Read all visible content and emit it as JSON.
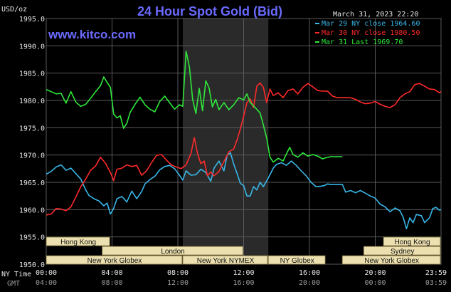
{
  "chart_data": {
    "type": "line",
    "title": "24 Hour Spot Gold (Bid)",
    "site": "www.kitco.com",
    "date_label": "March 31, 2023 22:20",
    "ylabel": "USD/oz",
    "ylim": [
      1950,
      1995
    ],
    "yticks": [
      "1995.0",
      "1990.0",
      "1985.0",
      "1980.0",
      "1975.0",
      "1970.0",
      "1965.0",
      "1960.0",
      "1955.0",
      "1950.0"
    ],
    "ytick_values": [
      1995,
      1990,
      1985,
      1980,
      1975,
      1970,
      1965,
      1960,
      1955,
      1950
    ],
    "x_range_hours": [
      0,
      24
    ],
    "ny_time_label": "NY Time",
    "gmt_label": "GMT",
    "xticks_ny": [
      "00:00",
      "04:00",
      "08:00",
      "12:00",
      "16:00",
      "20:00",
      "23:59"
    ],
    "xticks_gmt": [
      "04:00",
      "08:00",
      "12:00",
      "16:00",
      "20:00",
      "00:00",
      "03:59"
    ],
    "xtick_hours": [
      0,
      4,
      8,
      12,
      16,
      20,
      24
    ],
    "shaded_region_hours": [
      8.3,
      13.5
    ],
    "grid": true,
    "legend_position": "top-right",
    "series": [
      {
        "name": "Mar 29 NY close 1964.60",
        "color": "#39b6e8",
        "points": [
          [
            0,
            1966.5
          ],
          [
            0.3,
            1967
          ],
          [
            0.6,
            1967.8
          ],
          [
            0.9,
            1968.2
          ],
          [
            1.2,
            1967.2
          ],
          [
            1.5,
            1967.6
          ],
          [
            1.8,
            1966.6
          ],
          [
            2.1,
            1965.6
          ],
          [
            2.4,
            1963.6
          ],
          [
            2.6,
            1962.6
          ],
          [
            2.9,
            1962
          ],
          [
            3.2,
            1961.6
          ],
          [
            3.5,
            1960.7
          ],
          [
            3.7,
            1961.2
          ],
          [
            3.9,
            1959.2
          ],
          [
            4.1,
            1960.2
          ],
          [
            4.3,
            1962
          ],
          [
            4.6,
            1962.4
          ],
          [
            4.9,
            1961.4
          ],
          [
            5.2,
            1963.4
          ],
          [
            5.5,
            1962
          ],
          [
            5.8,
            1963.3
          ],
          [
            6.0,
            1964.7
          ],
          [
            6.3,
            1965.5
          ],
          [
            6.6,
            1966.1
          ],
          [
            6.9,
            1967.3
          ],
          [
            7.2,
            1967.9
          ],
          [
            7.5,
            1968.1
          ],
          [
            7.8,
            1967.5
          ],
          [
            8.1,
            1966.3
          ],
          [
            8.3,
            1965.4
          ],
          [
            8.5,
            1967.1
          ],
          [
            8.8,
            1966.3
          ],
          [
            9.1,
            1966.4
          ],
          [
            9.4,
            1967.4
          ],
          [
            9.7,
            1966.8
          ],
          [
            10.0,
            1965.2
          ],
          [
            10.2,
            1967.6
          ],
          [
            10.5,
            1968.9
          ],
          [
            10.8,
            1967.1
          ],
          [
            11.0,
            1970
          ],
          [
            11.2,
            1970.4
          ],
          [
            11.4,
            1968.3
          ],
          [
            11.6,
            1966.6
          ],
          [
            11.8,
            1964.8
          ],
          [
            12.0,
            1964.4
          ],
          [
            12.2,
            1962.5
          ],
          [
            12.4,
            1962.5
          ],
          [
            12.6,
            1964.2
          ],
          [
            12.8,
            1963.6
          ],
          [
            13.0,
            1965
          ],
          [
            13.2,
            1964.2
          ],
          [
            13.5,
            1965.8
          ],
          [
            13.8,
            1967.6
          ],
          [
            14.0,
            1968.3
          ],
          [
            14.3,
            1968.6
          ],
          [
            14.6,
            1968.1
          ],
          [
            14.9,
            1968.9
          ],
          [
            15.2,
            1968.1
          ],
          [
            15.5,
            1967.1
          ],
          [
            15.8,
            1966.2
          ],
          [
            16.1,
            1965
          ],
          [
            16.4,
            1964.2
          ],
          [
            16.7,
            1964.3
          ],
          [
            16.9,
            1964.4
          ],
          [
            17.1,
            1964.7
          ],
          [
            17.3,
            1964.6
          ],
          [
            18,
            1964.6
          ],
          [
            18.2,
            1963.2
          ],
          [
            18.5,
            1963.5
          ],
          [
            18.8,
            1963.1
          ],
          [
            19.1,
            1963.5
          ],
          [
            19.4,
            1963
          ],
          [
            19.7,
            1962.5
          ],
          [
            20.0,
            1962.1
          ],
          [
            20.3,
            1961
          ],
          [
            20.6,
            1960.5
          ],
          [
            20.9,
            1959.6
          ],
          [
            21.2,
            1960.3
          ],
          [
            21.5,
            1959.8
          ],
          [
            21.7,
            1958.6
          ],
          [
            21.9,
            1956.5
          ],
          [
            22.1,
            1958.5
          ],
          [
            22.3,
            1957.6
          ],
          [
            22.5,
            1959.1
          ],
          [
            22.8,
            1958.9
          ],
          [
            23.0,
            1957.6
          ],
          [
            23.3,
            1958.5
          ],
          [
            23.5,
            1960.2
          ],
          [
            23.7,
            1960.4
          ],
          [
            23.9,
            1959.9
          ],
          [
            24,
            1960
          ]
        ]
      },
      {
        "name": "Mar 30 NY close 1980.50",
        "color": "#ff2a2a",
        "points": [
          [
            0,
            1959
          ],
          [
            0.3,
            1959.2
          ],
          [
            0.6,
            1960.2
          ],
          [
            0.9,
            1960.1
          ],
          [
            1.2,
            1959.8
          ],
          [
            1.5,
            1960.5
          ],
          [
            1.8,
            1962.3
          ],
          [
            2.1,
            1964.2
          ],
          [
            2.4,
            1965.6
          ],
          [
            2.7,
            1967.2
          ],
          [
            3.0,
            1968
          ],
          [
            3.3,
            1969.6
          ],
          [
            3.6,
            1968.5
          ],
          [
            3.9,
            1966.8
          ],
          [
            4.1,
            1965.3
          ],
          [
            4.3,
            1967.4
          ],
          [
            4.6,
            1967.6
          ],
          [
            4.9,
            1968.2
          ],
          [
            5.2,
            1967.9
          ],
          [
            5.5,
            1968.1
          ],
          [
            5.8,
            1966.3
          ],
          [
            6.1,
            1967.1
          ],
          [
            6.4,
            1968.6
          ],
          [
            6.7,
            1969.9
          ],
          [
            7.0,
            1970.1
          ],
          [
            7.3,
            1969.1
          ],
          [
            7.6,
            1968.2
          ],
          [
            7.9,
            1967.8
          ],
          [
            8.2,
            1967.5
          ],
          [
            8.5,
            1968.2
          ],
          [
            8.8,
            1970.3
          ],
          [
            9.0,
            1973.2
          ],
          [
            9.2,
            1970.2
          ],
          [
            9.4,
            1968.4
          ],
          [
            9.6,
            1968.9
          ],
          [
            9.8,
            1966.2
          ],
          [
            10.0,
            1966.9
          ],
          [
            10.2,
            1966.2
          ],
          [
            10.5,
            1967
          ],
          [
            10.8,
            1968.8
          ],
          [
            11.1,
            1970.6
          ],
          [
            11.4,
            1971.1
          ],
          [
            11.6,
            1972.8
          ],
          [
            11.8,
            1974.8
          ],
          [
            12.0,
            1977.1
          ],
          [
            12.2,
            1979.6
          ],
          [
            12.4,
            1980.3
          ],
          [
            12.6,
            1978.7
          ],
          [
            12.8,
            1982.6
          ],
          [
            13.0,
            1983.2
          ],
          [
            13.2,
            1982.4
          ],
          [
            13.4,
            1979.6
          ],
          [
            13.6,
            1982.1
          ],
          [
            13.8,
            1980.9
          ],
          [
            14.1,
            1981.4
          ],
          [
            14.4,
            1980.5
          ],
          [
            14.7,
            1981.8
          ],
          [
            15.0,
            1982.1
          ],
          [
            15.3,
            1981.2
          ],
          [
            15.6,
            1982.4
          ],
          [
            15.9,
            1983.1
          ],
          [
            16.2,
            1982.5
          ],
          [
            16.5,
            1981.8
          ],
          [
            16.8,
            1981.7
          ],
          [
            17.1,
            1981.7
          ],
          [
            17.4,
            1980.8
          ],
          [
            17.7,
            1980.5
          ],
          [
            18.5,
            1980.5
          ],
          [
            18.8,
            1980.2
          ],
          [
            19.1,
            1979.7
          ],
          [
            19.4,
            1979.4
          ],
          [
            19.7,
            1979.5
          ],
          [
            20.0,
            1979.8
          ],
          [
            20.3,
            1979.3
          ],
          [
            20.6,
            1978.9
          ],
          [
            20.9,
            1978.7
          ],
          [
            21.2,
            1979.2
          ],
          [
            21.5,
            1980.5
          ],
          [
            21.8,
            1981.2
          ],
          [
            22.1,
            1981.6
          ],
          [
            22.4,
            1982.9
          ],
          [
            22.7,
            1983.1
          ],
          [
            23.0,
            1982.6
          ],
          [
            23.3,
            1982.1
          ],
          [
            23.6,
            1982
          ],
          [
            23.9,
            1981.4
          ],
          [
            24,
            1981.6
          ]
        ]
      },
      {
        "name": "Mar 31 Last 1969.70",
        "color": "#2ee83a",
        "points": [
          [
            0,
            1982
          ],
          [
            0.3,
            1981.6
          ],
          [
            0.6,
            1981.2
          ],
          [
            0.9,
            1981.3
          ],
          [
            1.2,
            1979.5
          ],
          [
            1.5,
            1981.6
          ],
          [
            1.8,
            1979.7
          ],
          [
            2.1,
            1978.9
          ],
          [
            2.4,
            1979.3
          ],
          [
            2.7,
            1980.4
          ],
          [
            3.0,
            1981.6
          ],
          [
            3.3,
            1982.7
          ],
          [
            3.5,
            1984.3
          ],
          [
            3.7,
            1983.3
          ],
          [
            3.9,
            1982.4
          ],
          [
            4.1,
            1977.5
          ],
          [
            4.3,
            1976.8
          ],
          [
            4.5,
            1977.2
          ],
          [
            4.7,
            1974.9
          ],
          [
            4.9,
            1975.8
          ],
          [
            5.1,
            1977.8
          ],
          [
            5.4,
            1979.3
          ],
          [
            5.7,
            1980.6
          ],
          [
            6.0,
            1979.2
          ],
          [
            6.3,
            1978.4
          ],
          [
            6.6,
            1977.9
          ],
          [
            6.9,
            1979.8
          ],
          [
            7.2,
            1980.8
          ],
          [
            7.5,
            1979.6
          ],
          [
            7.8,
            1978.4
          ],
          [
            8.1,
            1979.2
          ],
          [
            8.3,
            1978.9
          ],
          [
            8.5,
            1989
          ],
          [
            8.7,
            1986.2
          ],
          [
            8.9,
            1980.2
          ],
          [
            9.1,
            1977.6
          ],
          [
            9.3,
            1982.2
          ],
          [
            9.5,
            1978.1
          ],
          [
            9.7,
            1983.6
          ],
          [
            9.9,
            1982.3
          ],
          [
            10.1,
            1978.8
          ],
          [
            10.3,
            1980.2
          ],
          [
            10.5,
            1978.3
          ],
          [
            10.8,
            1979.6
          ],
          [
            11.1,
            1978.3
          ],
          [
            11.4,
            1979.2
          ],
          [
            11.7,
            1980.5
          ],
          [
            12.0,
            1980.1
          ],
          [
            12.2,
            1981.2
          ],
          [
            12.4,
            1979.6
          ],
          [
            12.7,
            1978.7
          ],
          [
            13.0,
            1977.7
          ],
          [
            13.2,
            1975.5
          ],
          [
            13.4,
            1973.1
          ],
          [
            13.6,
            1969.6
          ],
          [
            13.8,
            1968.7
          ],
          [
            14.1,
            1969.4
          ],
          [
            14.4,
            1968.9
          ],
          [
            14.6,
            1970.2
          ],
          [
            14.8,
            1971.4
          ],
          [
            15.0,
            1970.1
          ],
          [
            15.3,
            1969.6
          ],
          [
            15.6,
            1970.4
          ],
          [
            15.9,
            1969.8
          ],
          [
            16.2,
            1970.1
          ],
          [
            16.5,
            1969.8
          ],
          [
            16.8,
            1969.3
          ],
          [
            17.0,
            1969.5
          ],
          [
            17.3,
            1969.7
          ],
          [
            17.6,
            1969.7
          ],
          [
            18,
            1969.7
          ]
        ]
      }
    ],
    "sessions": [
      {
        "label": "Hong Kong",
        "start": 0,
        "end": 3.9,
        "row": 0
      },
      {
        "label": "Hong Kong",
        "start": 20.5,
        "end": 24,
        "row": 0
      },
      {
        "label": "London",
        "start": 3.4,
        "end": 12.0,
        "row": 1
      },
      {
        "label": "Sydney",
        "start": 19.3,
        "end": 24,
        "row": 1
      },
      {
        "label": "New York Globex",
        "start": 0,
        "end": 8.3,
        "row": 2
      },
      {
        "label": "New York NYMEX",
        "start": 8.3,
        "end": 13.5,
        "row": 2
      },
      {
        "label": "NY Globex",
        "start": 13.5,
        "end": 17.0,
        "row": 2
      },
      {
        "label": "New York Globex",
        "start": 18.0,
        "end": 24,
        "row": 2
      }
    ]
  }
}
